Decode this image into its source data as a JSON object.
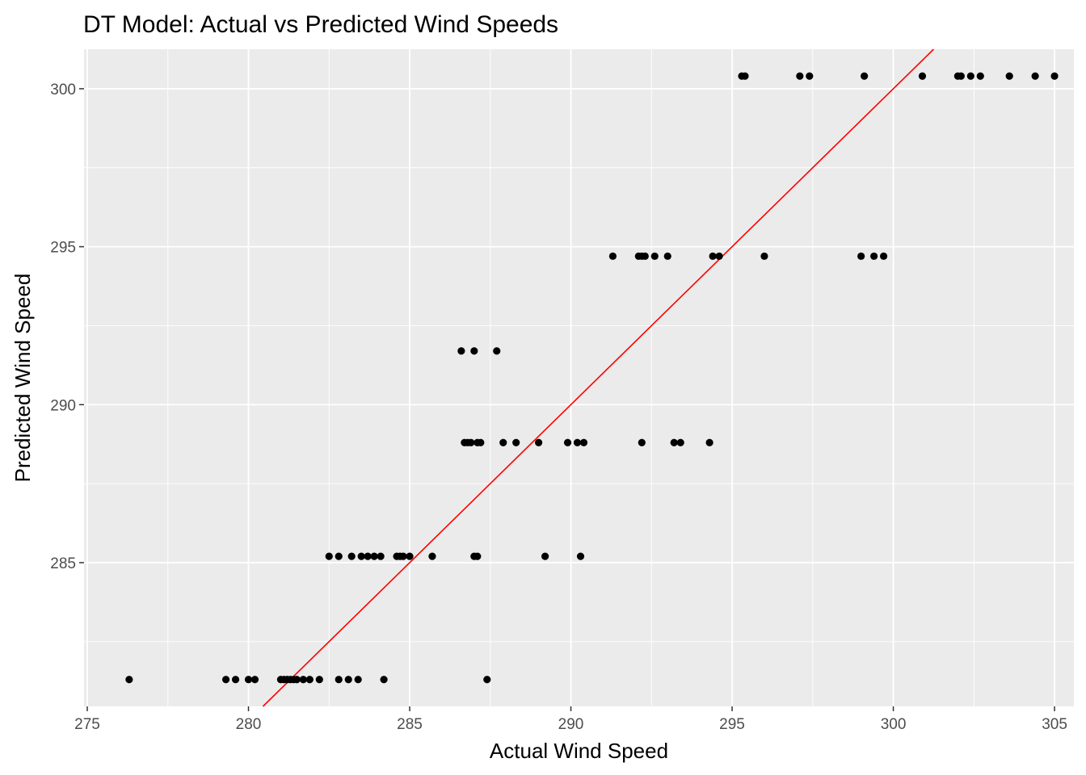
{
  "chart_data": {
    "type": "scatter",
    "title": "DT Model: Actual vs Predicted Wind Speeds",
    "xlabel": "Actual Wind Speed",
    "ylabel": "Predicted Wind Speed",
    "xlim": [
      274.9,
      305.6
    ],
    "ylim": [
      280.45,
      301.25
    ],
    "x_ticks": [
      275,
      280,
      285,
      290,
      295,
      300,
      305
    ],
    "y_ticks": [
      285,
      290,
      295,
      300
    ],
    "grid": true,
    "panel_background": "#EBEBEB",
    "point_color": "#000000",
    "reference_line": {
      "slope": 1,
      "intercept": 0,
      "color": "#FF0000"
    },
    "points": [
      {
        "x": 276.3,
        "y": 281.3
      },
      {
        "x": 279.3,
        "y": 281.3
      },
      {
        "x": 279.6,
        "y": 281.3
      },
      {
        "x": 280.0,
        "y": 281.3
      },
      {
        "x": 280.2,
        "y": 281.3
      },
      {
        "x": 281.0,
        "y": 281.3
      },
      {
        "x": 281.1,
        "y": 281.3
      },
      {
        "x": 281.2,
        "y": 281.3
      },
      {
        "x": 281.3,
        "y": 281.3
      },
      {
        "x": 281.4,
        "y": 281.3
      },
      {
        "x": 281.5,
        "y": 281.3
      },
      {
        "x": 281.7,
        "y": 281.3
      },
      {
        "x": 281.9,
        "y": 281.3
      },
      {
        "x": 282.2,
        "y": 281.3
      },
      {
        "x": 282.8,
        "y": 281.3
      },
      {
        "x": 283.1,
        "y": 281.3
      },
      {
        "x": 283.4,
        "y": 281.3
      },
      {
        "x": 284.2,
        "y": 281.3
      },
      {
        "x": 287.4,
        "y": 281.3
      },
      {
        "x": 282.5,
        "y": 285.2
      },
      {
        "x": 282.8,
        "y": 285.2
      },
      {
        "x": 283.2,
        "y": 285.2
      },
      {
        "x": 283.5,
        "y": 285.2
      },
      {
        "x": 283.7,
        "y": 285.2
      },
      {
        "x": 283.9,
        "y": 285.2
      },
      {
        "x": 284.1,
        "y": 285.2
      },
      {
        "x": 284.6,
        "y": 285.2
      },
      {
        "x": 284.7,
        "y": 285.2
      },
      {
        "x": 284.8,
        "y": 285.2
      },
      {
        "x": 285.0,
        "y": 285.2
      },
      {
        "x": 285.7,
        "y": 285.2
      },
      {
        "x": 287.0,
        "y": 285.2
      },
      {
        "x": 287.1,
        "y": 285.2
      },
      {
        "x": 289.2,
        "y": 285.2
      },
      {
        "x": 290.3,
        "y": 285.2
      },
      {
        "x": 286.7,
        "y": 288.8
      },
      {
        "x": 286.8,
        "y": 288.8
      },
      {
        "x": 286.9,
        "y": 288.8
      },
      {
        "x": 287.1,
        "y": 288.8
      },
      {
        "x": 287.2,
        "y": 288.8
      },
      {
        "x": 287.9,
        "y": 288.8
      },
      {
        "x": 288.3,
        "y": 288.8
      },
      {
        "x": 289.0,
        "y": 288.8
      },
      {
        "x": 289.9,
        "y": 288.8
      },
      {
        "x": 290.2,
        "y": 288.8
      },
      {
        "x": 290.4,
        "y": 288.8
      },
      {
        "x": 292.2,
        "y": 288.8
      },
      {
        "x": 293.2,
        "y": 288.8
      },
      {
        "x": 293.4,
        "y": 288.8
      },
      {
        "x": 294.3,
        "y": 288.8
      },
      {
        "x": 286.6,
        "y": 291.7
      },
      {
        "x": 287.0,
        "y": 291.7
      },
      {
        "x": 287.7,
        "y": 291.7
      },
      {
        "x": 291.3,
        "y": 294.7
      },
      {
        "x": 292.1,
        "y": 294.7
      },
      {
        "x": 292.2,
        "y": 294.7
      },
      {
        "x": 292.3,
        "y": 294.7
      },
      {
        "x": 292.6,
        "y": 294.7
      },
      {
        "x": 293.0,
        "y": 294.7
      },
      {
        "x": 294.4,
        "y": 294.7
      },
      {
        "x": 294.6,
        "y": 294.7
      },
      {
        "x": 296.0,
        "y": 294.7
      },
      {
        "x": 299.0,
        "y": 294.7
      },
      {
        "x": 299.4,
        "y": 294.7
      },
      {
        "x": 299.7,
        "y": 294.7
      },
      {
        "x": 295.3,
        "y": 300.4
      },
      {
        "x": 295.4,
        "y": 300.4
      },
      {
        "x": 297.1,
        "y": 300.4
      },
      {
        "x": 297.4,
        "y": 300.4
      },
      {
        "x": 299.1,
        "y": 300.4
      },
      {
        "x": 300.9,
        "y": 300.4
      },
      {
        "x": 302.0,
        "y": 300.4
      },
      {
        "x": 302.1,
        "y": 300.4
      },
      {
        "x": 302.4,
        "y": 300.4
      },
      {
        "x": 302.7,
        "y": 300.4
      },
      {
        "x": 303.6,
        "y": 300.4
      },
      {
        "x": 304.4,
        "y": 300.4
      },
      {
        "x": 305.0,
        "y": 300.4
      }
    ]
  }
}
